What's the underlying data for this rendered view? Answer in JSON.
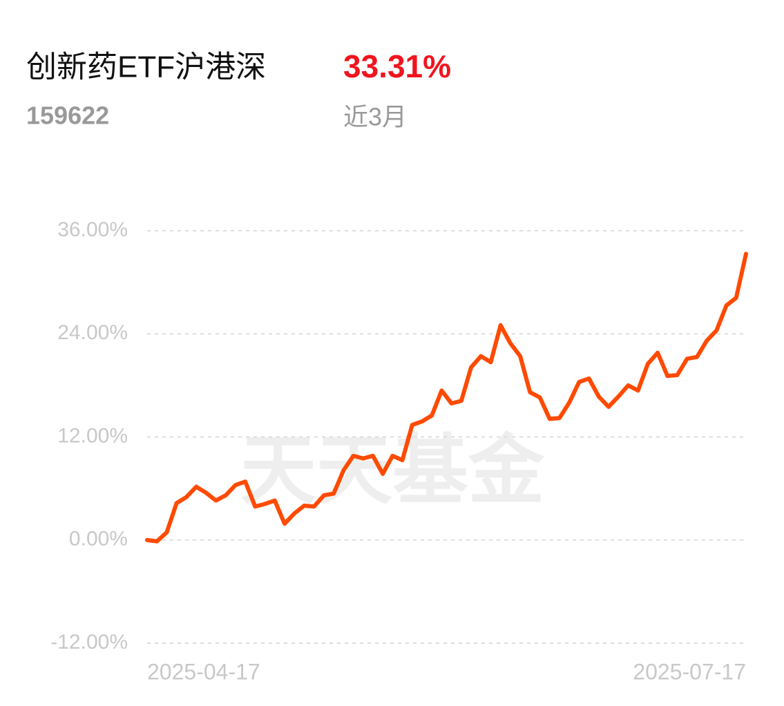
{
  "chart_data": {
    "type": "line",
    "title": "创新药ETF沪港深",
    "return_value": "33.31%",
    "code": "159622",
    "period": "近3月",
    "watermark": "天天基金",
    "categories": [
      "2025-04-17",
      null,
      null,
      null,
      null,
      null,
      null,
      null,
      null,
      null,
      null,
      null,
      null,
      null,
      null,
      null,
      null,
      null,
      null,
      null,
      null,
      null,
      null,
      null,
      null,
      null,
      null,
      null,
      null,
      null,
      null,
      null,
      null,
      null,
      null,
      null,
      null,
      null,
      null,
      null,
      null,
      null,
      null,
      null,
      null,
      null,
      null,
      null,
      null,
      null,
      null,
      null,
      null,
      null,
      null,
      null,
      null,
      null,
      null,
      null,
      null,
      "2025-07-17"
    ],
    "series": [
      {
        "name": "创新药ETF沪港深",
        "color": "#ff4a00",
        "values": [
          0,
          -0.15,
          0.9,
          4.3,
          5.0,
          6.2,
          5.5,
          4.6,
          5.2,
          6.4,
          6.8,
          3.9,
          4.2,
          4.6,
          1.9,
          3.1,
          4.0,
          3.9,
          5.2,
          5.4,
          8.1,
          9.8,
          9.5,
          9.8,
          7.7,
          9.8,
          9.3,
          13.4,
          13.8,
          14.5,
          17.4,
          15.9,
          16.2,
          20.1,
          21.4,
          20.7,
          25.0,
          22.9,
          21.4,
          17.2,
          16.6,
          14.1,
          14.2,
          16.0,
          18.4,
          18.8,
          16.7,
          15.5,
          16.7,
          18.0,
          17.4,
          20.5,
          21.8,
          19.1,
          19.2,
          21.1,
          21.3,
          23.2,
          24.4,
          27.3,
          28.2,
          33.31
        ]
      }
    ],
    "ylim": [
      -12,
      36
    ],
    "yticks": [
      {
        "value": -12,
        "label": "-12.00%"
      },
      {
        "value": 0,
        "label": "0.00%"
      },
      {
        "value": 12,
        "label": "12.00%"
      },
      {
        "value": 24,
        "label": "24.00%"
      },
      {
        "value": 36,
        "label": "36.00%"
      }
    ],
    "grid": true
  }
}
